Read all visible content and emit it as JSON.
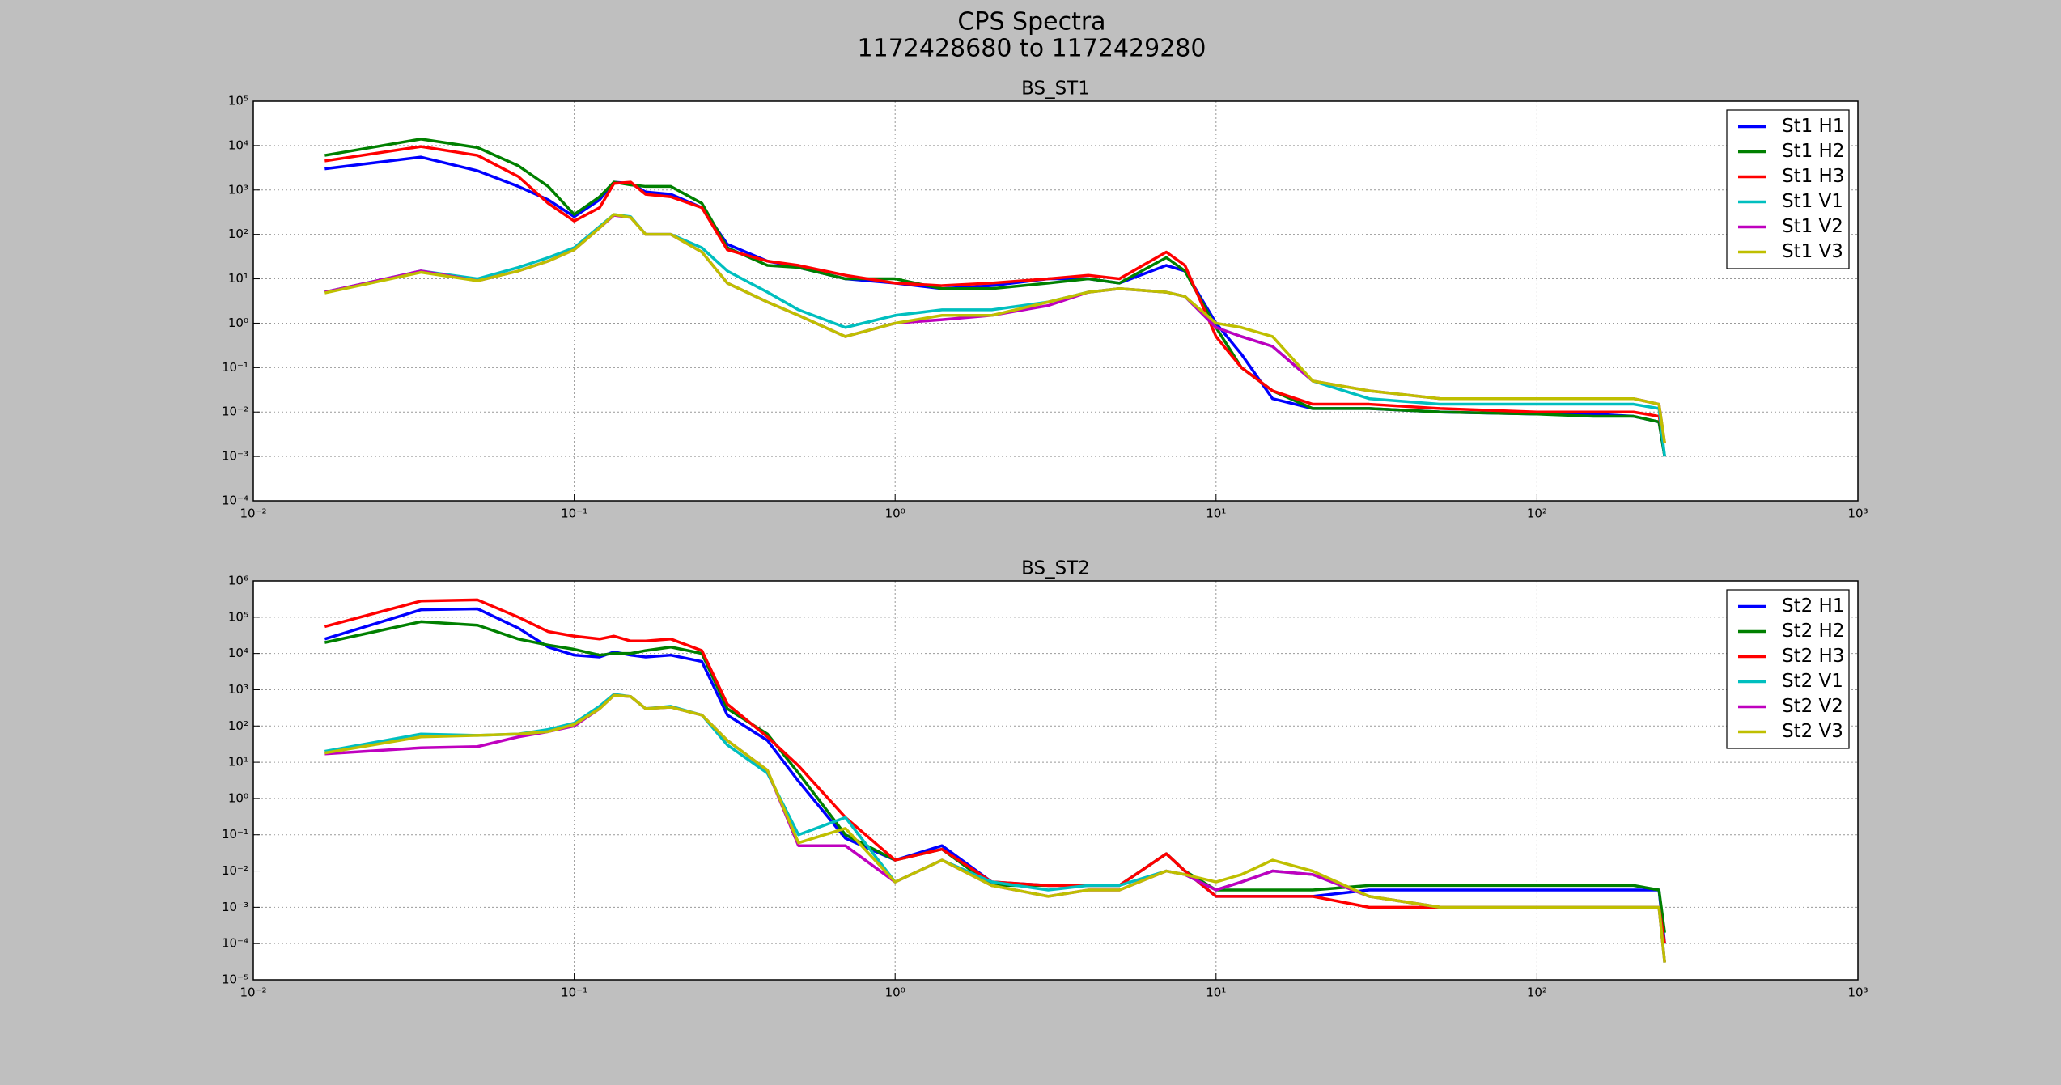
{
  "figure": {
    "title": "CPS Spectra",
    "subtitle": "1172428680 to 1172429280"
  },
  "chart_data": [
    {
      "type": "line",
      "title": "BS_ST1",
      "xscale": "log",
      "yscale": "log",
      "grid": true,
      "legend": "upper right",
      "xlim": [
        0.01,
        1000
      ],
      "xticks": [
        {
          "value": 0.01,
          "label": "10⁻²"
        },
        {
          "value": 0.1,
          "label": "10⁻¹"
        },
        {
          "value": 1,
          "label": "10⁰"
        },
        {
          "value": 10,
          "label": "10¹"
        },
        {
          "value": 100,
          "label": "10²"
        },
        {
          "value": 1000,
          "label": "10³"
        }
      ],
      "ylim": [
        0.0001,
        100000
      ],
      "yticks": [
        {
          "value": 0.0001,
          "label": "10⁻⁴"
        },
        {
          "value": 0.001,
          "label": "10⁻³"
        },
        {
          "value": 0.01,
          "label": "10⁻²"
        },
        {
          "value": 0.1,
          "label": "10⁻¹"
        },
        {
          "value": 1,
          "label": "10⁰"
        },
        {
          "value": 10,
          "label": "10¹"
        },
        {
          "value": 100,
          "label": "10²"
        },
        {
          "value": 1000,
          "label": "10³"
        },
        {
          "value": 10000,
          "label": "10⁴"
        },
        {
          "value": 100000,
          "label": "10⁵"
        }
      ],
      "x": [
        0.0167,
        0.0333,
        0.05,
        0.067,
        0.083,
        0.1,
        0.12,
        0.133,
        0.15,
        0.167,
        0.2,
        0.25,
        0.3,
        0.4,
        0.5,
        0.7,
        1,
        1.4,
        2,
        3,
        4,
        5,
        7,
        8,
        10,
        12,
        15,
        20,
        30,
        50,
        100,
        150,
        200,
        240,
        250
      ],
      "series": [
        {
          "name": "St1 H1",
          "color": "#0000ff",
          "values": [
            3000,
            5500,
            2700,
            1200,
            600,
            250,
            600,
            1500,
            1400,
            900,
            800,
            400,
            60,
            25,
            18,
            10,
            8,
            6,
            7,
            10,
            10,
            8,
            20,
            15,
            1,
            0.2,
            0.02,
            0.012,
            0.012,
            0.01,
            0.009,
            0.009,
            0.008,
            0.006,
            0.001
          ]
        },
        {
          "name": "St1 H2",
          "color": "#008000",
          "values": [
            6000,
            14000,
            9000,
            3500,
            1200,
            280,
            700,
            1500,
            1300,
            1200,
            1200,
            500,
            50,
            20,
            18,
            10,
            10,
            6,
            6,
            8,
            10,
            8,
            30,
            15,
            0.8,
            0.1,
            0.03,
            0.012,
            0.012,
            0.01,
            0.009,
            0.008,
            0.008,
            0.006,
            0.001
          ]
        },
        {
          "name": "St1 H3",
          "color": "#ff0000",
          "values": [
            4500,
            9500,
            6000,
            2000,
            500,
            200,
            400,
            1400,
            1500,
            800,
            700,
            400,
            45,
            25,
            20,
            12,
            8,
            7,
            8,
            10,
            12,
            10,
            40,
            20,
            0.5,
            0.1,
            0.03,
            0.015,
            0.015,
            0.012,
            0.01,
            0.01,
            0.01,
            0.008,
            0.002
          ]
        },
        {
          "name": "St1 V1",
          "color": "#00bfbf",
          "values": [
            5,
            15,
            10,
            18,
            30,
            50,
            150,
            280,
            250,
            100,
            100,
            50,
            15,
            5,
            2,
            0.8,
            1.5,
            2,
            2,
            3,
            5,
            6,
            5,
            4,
            0.8,
            0.5,
            0.3,
            0.05,
            0.02,
            0.015,
            0.015,
            0.015,
            0.015,
            0.012,
            0.001
          ]
        },
        {
          "name": "St1 V2",
          "color": "#bf00bf",
          "values": [
            5,
            15,
            9,
            15,
            25,
            45,
            140,
            270,
            240,
            100,
            100,
            40,
            8,
            3,
            1.5,
            0.5,
            1,
            1.2,
            1.5,
            2.5,
            5,
            6,
            5,
            4,
            0.8,
            0.5,
            0.3,
            0.05,
            0.03,
            0.02,
            0.02,
            0.02,
            0.02,
            0.015,
            0.002
          ]
        },
        {
          "name": "St1 V3",
          "color": "#bfbf00",
          "values": [
            4.8,
            14,
            9,
            15,
            25,
            45,
            140,
            280,
            240,
            100,
            100,
            40,
            8,
            3,
            1.5,
            0.5,
            1,
            1.5,
            1.5,
            3,
            5,
            6,
            5,
            4,
            1,
            0.8,
            0.5,
            0.05,
            0.03,
            0.02,
            0.02,
            0.02,
            0.02,
            0.015,
            0.002
          ]
        }
      ]
    },
    {
      "type": "line",
      "title": "BS_ST2",
      "xscale": "log",
      "yscale": "log",
      "grid": true,
      "legend": "upper right",
      "xlim": [
        0.01,
        1000
      ],
      "xticks": [
        {
          "value": 0.01,
          "label": "10⁻²"
        },
        {
          "value": 0.1,
          "label": "10⁻¹"
        },
        {
          "value": 1,
          "label": "10⁰"
        },
        {
          "value": 10,
          "label": "10¹"
        },
        {
          "value": 100,
          "label": "10²"
        },
        {
          "value": 1000,
          "label": "10³"
        }
      ],
      "ylim": [
        1e-05,
        1000000
      ],
      "yticks": [
        {
          "value": 1e-05,
          "label": "10⁻⁵"
        },
        {
          "value": 0.0001,
          "label": "10⁻⁴"
        },
        {
          "value": 0.001,
          "label": "10⁻³"
        },
        {
          "value": 0.01,
          "label": "10⁻²"
        },
        {
          "value": 0.1,
          "label": "10⁻¹"
        },
        {
          "value": 1,
          "label": "10⁰"
        },
        {
          "value": 10,
          "label": "10¹"
        },
        {
          "value": 100,
          "label": "10²"
        },
        {
          "value": 1000,
          "label": "10³"
        },
        {
          "value": 10000,
          "label": "10⁴"
        },
        {
          "value": 100000,
          "label": "10⁵"
        },
        {
          "value": 1000000,
          "label": "10⁶"
        }
      ],
      "x": [
        0.0167,
        0.0333,
        0.05,
        0.067,
        0.083,
        0.1,
        0.12,
        0.133,
        0.15,
        0.167,
        0.2,
        0.25,
        0.3,
        0.4,
        0.5,
        0.7,
        1,
        1.4,
        2,
        3,
        4,
        5,
        7,
        8,
        10,
        12,
        15,
        20,
        30,
        50,
        100,
        150,
        200,
        240,
        250
      ],
      "series": [
        {
          "name": "St2 H1",
          "color": "#0000ff",
          "values": [
            25000,
            160000,
            170000,
            50000,
            15000,
            9000,
            8000,
            11000,
            9000,
            8000,
            9000,
            6000,
            200,
            40,
            3,
            0.08,
            0.02,
            0.05,
            0.005,
            0.004,
            0.004,
            0.004,
            0.03,
            0.01,
            0.002,
            0.002,
            0.002,
            0.002,
            0.003,
            0.003,
            0.003,
            0.003,
            0.003,
            0.003,
            0.0001
          ]
        },
        {
          "name": "St2 H2",
          "color": "#008000",
          "values": [
            20000,
            75000,
            60000,
            25000,
            17000,
            13000,
            9000,
            10000,
            10000,
            12000,
            15000,
            10000,
            300,
            60,
            5,
            0.1,
            0.02,
            0.04,
            0.004,
            0.004,
            0.004,
            0.004,
            0.03,
            0.01,
            0.003,
            0.003,
            0.003,
            0.003,
            0.004,
            0.004,
            0.004,
            0.004,
            0.004,
            0.003,
            0.0002
          ]
        },
        {
          "name": "St2 H3",
          "color": "#ff0000",
          "values": [
            55000,
            280000,
            300000,
            100000,
            40000,
            30000,
            25000,
            30000,
            22000,
            22000,
            25000,
            12000,
            400,
            50,
            8,
            0.3,
            0.02,
            0.04,
            0.005,
            0.004,
            0.004,
            0.004,
            0.03,
            0.01,
            0.002,
            0.002,
            0.002,
            0.002,
            0.001,
            0.001,
            0.001,
            0.001,
            0.001,
            0.001,
            0.0001
          ]
        },
        {
          "name": "St2 V1",
          "color": "#00bfbf",
          "values": [
            20,
            60,
            55,
            60,
            80,
            120,
            350,
            750,
            650,
            300,
            350,
            200,
            30,
            5,
            0.1,
            0.3,
            0.005,
            0.02,
            0.005,
            0.003,
            0.004,
            0.004,
            0.01,
            0.008,
            0.003,
            0.005,
            0.01,
            0.008,
            0.002,
            0.001,
            0.001,
            0.001,
            0.001,
            0.001,
            3e-05
          ]
        },
        {
          "name": "St2 V2",
          "color": "#bf00bf",
          "values": [
            17,
            25,
            27,
            50,
            70,
            100,
            300,
            700,
            650,
            300,
            330,
            200,
            40,
            6,
            0.05,
            0.05,
            0.005,
            0.02,
            0.004,
            0.002,
            0.003,
            0.003,
            0.01,
            0.008,
            0.003,
            0.005,
            0.01,
            0.008,
            0.002,
            0.001,
            0.001,
            0.001,
            0.001,
            0.001,
            3e-05
          ]
        },
        {
          "name": "St2 V3",
          "color": "#bfbf00",
          "values": [
            18,
            50,
            55,
            60,
            70,
            110,
            300,
            700,
            650,
            300,
            330,
            200,
            40,
            6,
            0.06,
            0.15,
            0.005,
            0.02,
            0.004,
            0.002,
            0.003,
            0.003,
            0.01,
            0.008,
            0.005,
            0.008,
            0.02,
            0.01,
            0.002,
            0.001,
            0.001,
            0.001,
            0.001,
            0.001,
            3e-05
          ]
        }
      ]
    }
  ]
}
